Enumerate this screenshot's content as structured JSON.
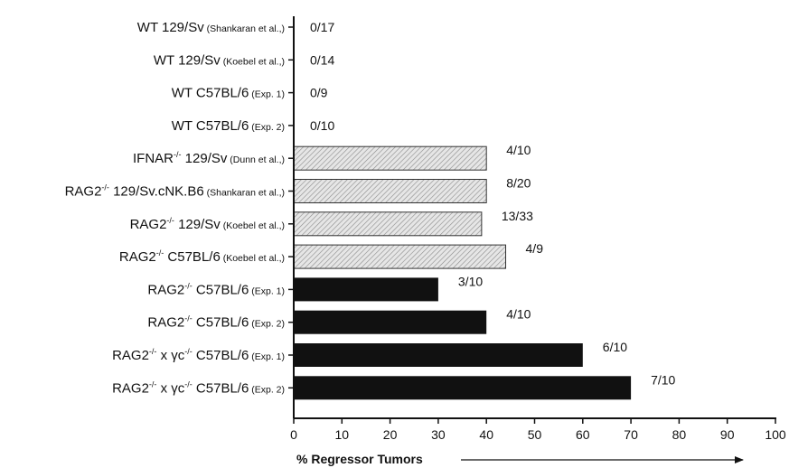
{
  "chart_data": {
    "type": "bar",
    "orientation": "horizontal",
    "xlabel": "% Regressor Tumors",
    "xlim": [
      0,
      100
    ],
    "xticks": [
      "0",
      "10",
      "20",
      "30",
      "40",
      "50",
      "60",
      "70",
      "80",
      "90",
      "100"
    ],
    "grid": false,
    "legend": "none",
    "colors": {
      "hatched": "#d9d9d9",
      "solid": "#111111",
      "text": "#111111"
    },
    "categories": [
      {
        "main": "WT 129/Sv",
        "sup": "",
        "tail": "",
        "note": "(Shankaran et al.,)",
        "value": 0,
        "label": "0/17",
        "style": "hatched"
      },
      {
        "main": "WT 129/Sv",
        "sup": "",
        "tail": "",
        "note": "(Koebel et al.,)",
        "value": 0,
        "label": "0/14",
        "style": "hatched"
      },
      {
        "main": "WT C57BL/6",
        "sup": "",
        "tail": "",
        "note": "(Exp. 1)",
        "value": 0,
        "label": "0/9",
        "style": "hatched"
      },
      {
        "main": "WT C57BL/6",
        "sup": "",
        "tail": "",
        "note": "(Exp. 2)",
        "value": 0,
        "label": "0/10",
        "style": "hatched"
      },
      {
        "main": "IFNAR",
        "sup": "-/-",
        "tail": " 129/Sv",
        "note": "(Dunn et al.,)",
        "value": 40,
        "label": "4/10",
        "style": "hatched"
      },
      {
        "main": "RAG2",
        "sup": "-/-",
        "tail": " 129/Sv.cNK.B6",
        "note": "(Shankaran et al.,)",
        "value": 40,
        "label": "8/20",
        "style": "hatched"
      },
      {
        "main": "RAG2",
        "sup": "-/-",
        "tail": " 129/Sv",
        "note": "(Koebel et al.,)",
        "value": 39,
        "label": "13/33",
        "style": "hatched"
      },
      {
        "main": "RAG2",
        "sup": "-/-",
        "tail": " C57BL/6",
        "note": "(Koebel et al.,)",
        "value": 44,
        "label": "4/9",
        "style": "hatched"
      },
      {
        "main": "RAG2",
        "sup": "-/-",
        "tail": " C57BL/6",
        "note": "(Exp. 1)",
        "value": 30,
        "label": "3/10",
        "style": "solid"
      },
      {
        "main": "RAG2",
        "sup": "-/-",
        "tail": " C57BL/6",
        "note": "(Exp. 2)",
        "value": 40,
        "label": "4/10",
        "style": "solid"
      },
      {
        "main": "RAG2",
        "sup": "-/-",
        "tail": " x γc",
        "sup2": "-/-",
        "tail2": " C57BL/6",
        "note": "(Exp. 1)",
        "value": 60,
        "label": "6/10",
        "style": "solid"
      },
      {
        "main": "RAG2",
        "sup": "-/-",
        "tail": " x γc",
        "sup2": "-/-",
        "tail2": "  C57BL/6",
        "note": "(Exp. 2)",
        "value": 70,
        "label": "7/10",
        "style": "solid"
      }
    ]
  }
}
